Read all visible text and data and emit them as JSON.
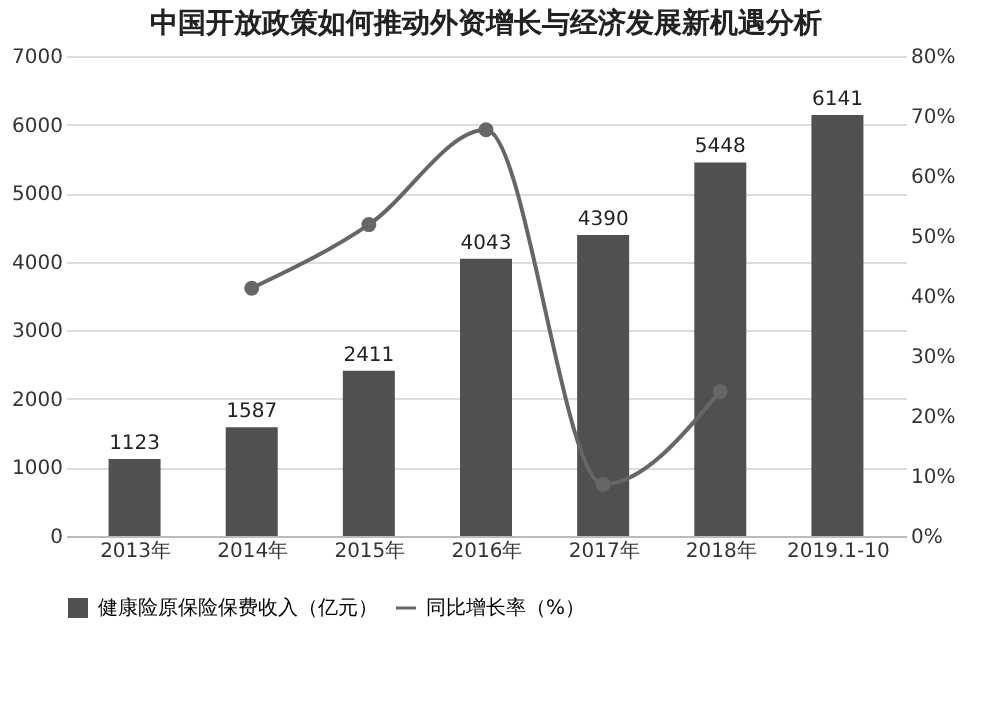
{
  "chart_data": {
    "type": "bar",
    "title": "中国开放政策如何推动外资增长与经济发展新机遇分析",
    "categories": [
      "2013年",
      "2014年",
      "2015年",
      "2016年",
      "2017年",
      "2018年",
      "2019.1-10"
    ],
    "series": [
      {
        "name": "健康险原保险保费收入（亿元）",
        "color": "#505050",
        "values": [
          1123,
          1587,
          2411,
          4043,
          4390,
          5448,
          6141
        ],
        "value_labels": [
          "1123",
          "1587",
          "2411",
          "4043",
          "4390",
          "5448",
          "6141"
        ]
      },
      {
        "name": "同比增长率（%）",
        "type": "line",
        "axis": "y2",
        "color": "#666666",
        "marker": "circle",
        "values": [
          null,
          41.3,
          51.9,
          67.7,
          8.6,
          24.1,
          null
        ]
      }
    ],
    "ylim": [
      0,
      7000
    ],
    "yticks": [
      0,
      1000,
      2000,
      3000,
      4000,
      5000,
      6000,
      7000
    ],
    "y2lim": [
      0,
      80
    ],
    "y2ticks": [
      {
        "value": 0,
        "label": "0%"
      },
      {
        "value": 10,
        "label": "10%"
      },
      {
        "value": 20,
        "label": "20%"
      },
      {
        "value": 30,
        "label": "30%"
      },
      {
        "value": 40,
        "label": "40%"
      },
      {
        "value": 50,
        "label": "50%"
      },
      {
        "value": 60,
        "label": "60%"
      },
      {
        "value": 70,
        "label": "70%"
      },
      {
        "value": 80,
        "label": "80%"
      }
    ],
    "grid": "y",
    "legend": "bottom"
  }
}
